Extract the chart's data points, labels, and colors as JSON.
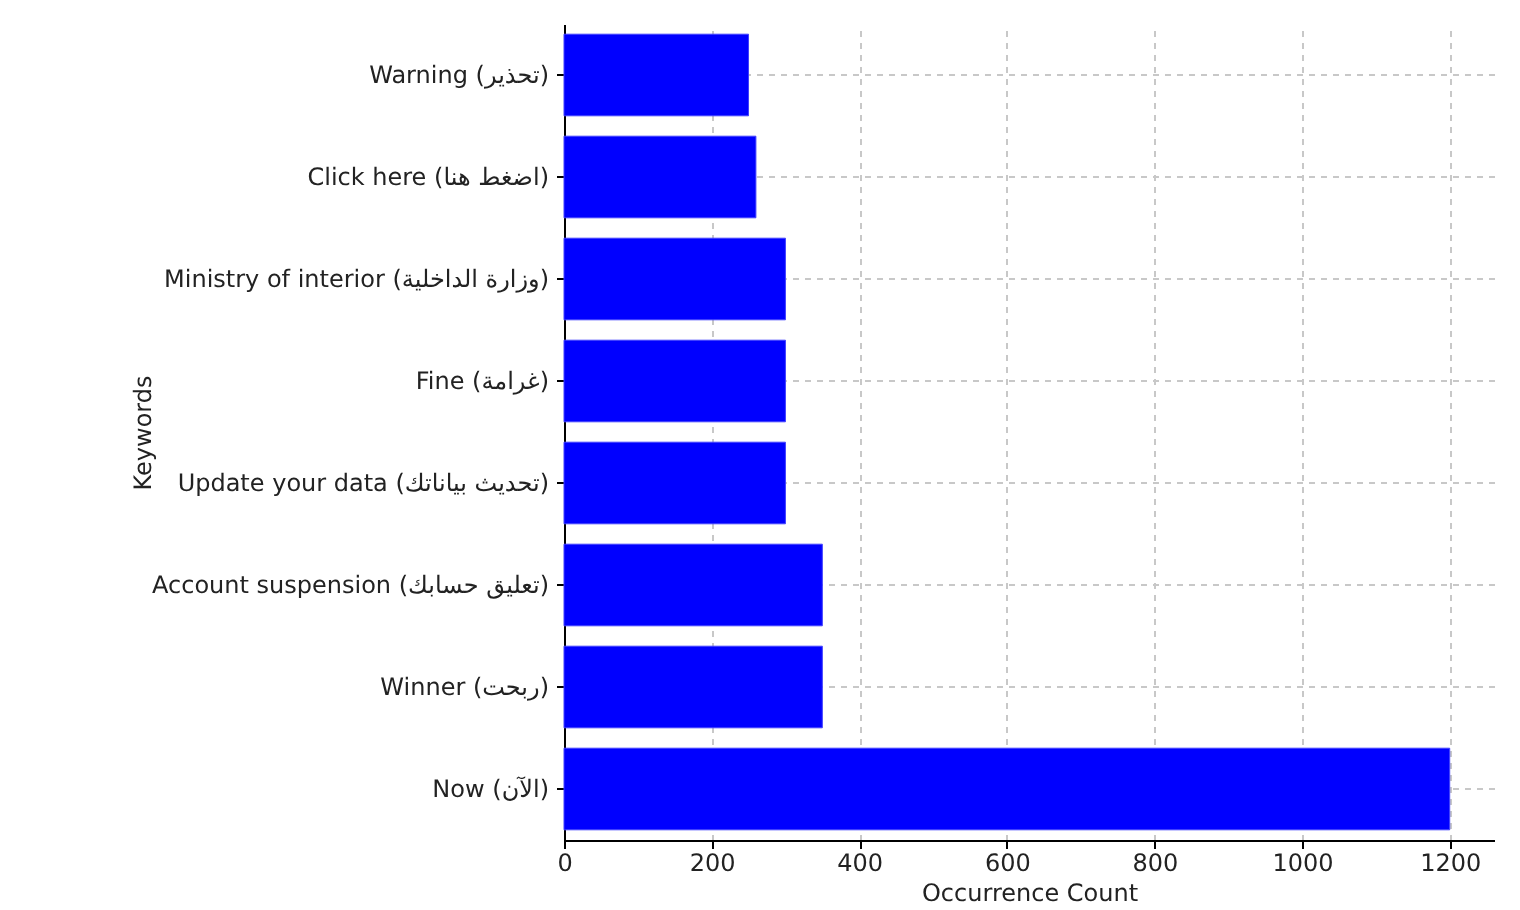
{
  "chart_data": {
    "type": "bar",
    "orientation": "horizontal",
    "xlabel": "Occurrence Count",
    "ylabel": "Keywords",
    "categories": [
      "Warning (تحذير)",
      "Click here (اضغط هنا)",
      "Ministry of interior (وزارة الداخلية)",
      "Fine (غرامة)",
      "Update your data (تحديث بياناتك)",
      "Account suspension (تعليق حسابك)",
      "Winner (ربحت)",
      "Now (الآن)"
    ],
    "values": [
      250,
      260,
      300,
      300,
      300,
      350,
      350,
      1200
    ],
    "color": "#0000ff",
    "xlim": [
      0,
      1260
    ],
    "xticks": [
      0,
      200,
      400,
      600,
      800,
      1000,
      1200
    ],
    "grid": true
  }
}
